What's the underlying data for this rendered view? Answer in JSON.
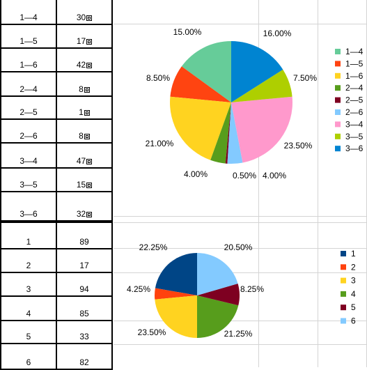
{
  "table_top": {
    "rows": [
      {
        "range": "1—4",
        "value": "30"
      },
      {
        "range": "1—5",
        "value": "17"
      },
      {
        "range": "1—6",
        "value": "42"
      },
      {
        "range": "2—4",
        "value": "8"
      },
      {
        "range": "2—5",
        "value": "1"
      },
      {
        "range": "2—6",
        "value": "8"
      },
      {
        "range": "3—4",
        "value": "47"
      },
      {
        "range": "3—5",
        "value": "15"
      },
      {
        "range": "3—6",
        "value": "32"
      }
    ]
  },
  "table_bottom": {
    "rows": [
      {
        "label": "1",
        "value": "89"
      },
      {
        "label": "2",
        "value": "17"
      },
      {
        "label": "3",
        "value": "94"
      },
      {
        "label": "4",
        "value": "85"
      },
      {
        "label": "5",
        "value": "33"
      },
      {
        "label": "6",
        "value": "82"
      }
    ]
  },
  "chart_data": [
    {
      "type": "pie",
      "title": "",
      "legend_position": "right",
      "categories": [
        "1—4",
        "1—5",
        "1—6",
        "2—4",
        "2—5",
        "2—6",
        "3—4",
        "3—5",
        "3—6"
      ],
      "values": [
        30,
        17,
        42,
        8,
        1,
        8,
        47,
        15,
        32
      ],
      "percent_labels": [
        "15.00%",
        "8.50%",
        "21.00%",
        "4.00%",
        "0.50%",
        "4.00%",
        "23.50%",
        "7.50%",
        "16.00%"
      ],
      "colors": [
        "#66cc99",
        "#ff4411",
        "#ffd320",
        "#579d1c",
        "#7e0021",
        "#83caff",
        "#ff99cc",
        "#aecf00",
        "#0084d1"
      ]
    },
    {
      "type": "pie",
      "title": "",
      "legend_position": "right",
      "categories": [
        "1",
        "2",
        "3",
        "4",
        "5",
        "6"
      ],
      "values": [
        89,
        17,
        94,
        85,
        33,
        82
      ],
      "percent_labels": [
        "22.25%",
        "4.25%",
        "23.50%",
        "21.25%",
        "8.25%",
        "20.50%"
      ],
      "colors": [
        "#004586",
        "#ff420e",
        "#ffd320",
        "#579d1c",
        "#7e0021",
        "#83caff"
      ]
    }
  ]
}
